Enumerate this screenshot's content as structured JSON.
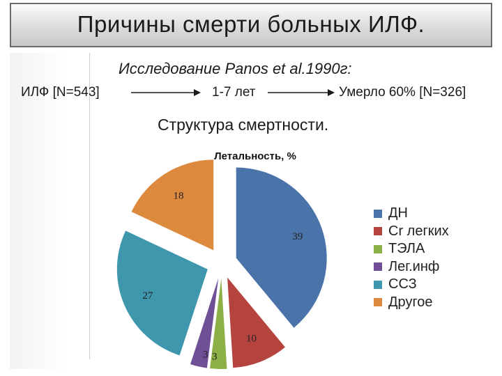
{
  "slide": {
    "title": "Причины смерти больных ИЛФ.",
    "study": "Исследование Panos et al.1990г:",
    "flow": {
      "left": "ИЛФ [N=543]",
      "middle": "1-7 лет",
      "right": "Умерло 60% [N=326]"
    },
    "structure": "Структура смертности."
  },
  "chart_data": {
    "type": "pie",
    "title": "Летальность, %",
    "categories": [
      "ДН",
      "Cr легких",
      "ТЭЛА",
      "Лег.инф",
      "ССЗ",
      "Другое"
    ],
    "values": [
      39,
      10,
      3,
      3,
      27,
      18
    ],
    "colors": [
      "#4a73aa",
      "#b5443f",
      "#8caf46",
      "#6f5096",
      "#3f97ad",
      "#dd8a3f"
    ],
    "exploded": true,
    "legend": "right"
  }
}
